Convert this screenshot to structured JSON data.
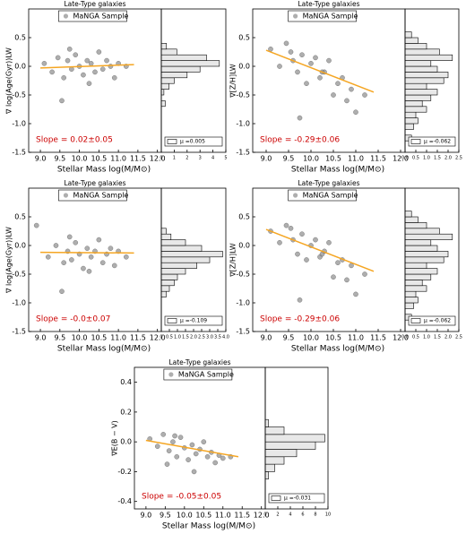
{
  "chart_data": [
    {
      "type": "scatter",
      "title": "Late-Type galaxies",
      "x_label": "Stellar Mass log(M/M⊙)",
      "y_label": "∇ log(Age(Gyr))LW",
      "annotation": "Slope = 0.02±0.05",
      "annotation_color": "#cc0000",
      "xlim": [
        8.7,
        12.1
      ],
      "xticks": [
        {
          "value": 9,
          "label": "9.0"
        },
        9.5,
        {
          "value": 10,
          "label": "10.0"
        },
        10.5,
        {
          "value": 11,
          "label": "11.0"
        },
        11.5,
        {
          "value": 12,
          "label": "12.0"
        }
      ],
      "ylim": [
        -1.5,
        1.0
      ],
      "yticks": [
        -1.5,
        {
          "value": -1,
          "label": "-1.0"
        },
        -0.5,
        {
          "value": 0,
          "label": "0.0"
        },
        0.5
      ],
      "series": [
        {
          "name": "MaNGA Sample",
          "color": "#8c8c8c",
          "x": [
            9.1,
            9.3,
            9.45,
            9.6,
            9.7,
            9.8,
            9.9,
            10.0,
            10.1,
            10.2,
            10.3,
            10.4,
            10.5,
            10.6,
            10.7,
            10.8,
            10.9,
            11.0,
            11.2,
            9.55,
            9.75,
            10.25
          ],
          "values": [
            0.05,
            -0.1,
            0.15,
            -0.2,
            0.1,
            -0.05,
            0.2,
            0.0,
            -0.15,
            0.1,
            0.05,
            -0.1,
            0.25,
            -0.05,
            0.1,
            0.0,
            -0.2,
            0.05,
            0.0,
            -0.6,
            0.3,
            -0.3
          ]
        }
      ],
      "fit": {
        "color": "#f5a623",
        "x": [
          9.0,
          11.4
        ],
        "values": [
          -0.03,
          0.03
        ]
      },
      "histogram": {
        "legend": "μ =0.005",
        "xlim": [
          0,
          5
        ],
        "xticks": [
          0,
          1,
          2,
          3,
          4,
          5
        ],
        "bins": [
          -0.7,
          -0.6,
          -0.5,
          -0.4,
          -0.3,
          -0.2,
          -0.1,
          0.0,
          0.1,
          0.2,
          0.3,
          0.4
        ],
        "counts": [
          0.3,
          0,
          0.2,
          0.6,
          1.0,
          2.0,
          3.0,
          4.5,
          3.5,
          1.2,
          0.4
        ]
      }
    },
    {
      "type": "scatter",
      "title": "Late-Type galaxies",
      "x_label": "Stellar Mass log(M/M⊙)",
      "y_label": "∇[Z/H]LW",
      "annotation": "Slope = -0.29±0.06",
      "annotation_color": "#cc0000",
      "xlim": [
        8.7,
        12.1
      ],
      "xticks": [
        {
          "value": 9,
          "label": "9.0"
        },
        9.5,
        {
          "value": 10,
          "label": "10.0"
        },
        10.5,
        {
          "value": 11,
          "label": "11.0"
        },
        11.5,
        {
          "value": 12,
          "label": "12.0"
        }
      ],
      "ylim": [
        -1.5,
        1.0
      ],
      "yticks": [
        -1.5,
        {
          "value": -1,
          "label": "-1.0"
        },
        -0.5,
        {
          "value": 0,
          "label": "0.0"
        },
        0.5
      ],
      "series": [
        {
          "name": "MaNGA Sample",
          "color": "#8c8c8c",
          "x": [
            9.1,
            9.3,
            9.45,
            9.6,
            9.7,
            9.8,
            9.9,
            10.0,
            10.1,
            10.2,
            10.3,
            10.4,
            10.5,
            10.6,
            10.7,
            10.8,
            10.9,
            11.0,
            11.2,
            9.55,
            9.75,
            10.25
          ],
          "values": [
            0.3,
            0.0,
            0.4,
            0.1,
            -0.1,
            0.2,
            -0.3,
            0.05,
            0.15,
            -0.2,
            -0.1,
            0.1,
            -0.5,
            -0.3,
            -0.2,
            -0.6,
            -0.4,
            -0.8,
            -0.5,
            0.25,
            -0.9,
            -0.1
          ]
        }
      ],
      "fit": {
        "color": "#f5a623",
        "x": [
          9.0,
          11.4
        ],
        "values": [
          0.28,
          -0.45
        ]
      },
      "histogram": {
        "legend": "μ =-0.062",
        "xlim": [
          0,
          2.5
        ],
        "xticks": [
          {
            "value": 0,
            "label": "0.0"
          },
          0.5,
          {
            "value": 1,
            "label": "1.0"
          },
          1.5,
          {
            "value": 2,
            "label": "2.0"
          },
          2.5
        ],
        "bins": [
          -1.3,
          -1.2,
          -1.1,
          -1.0,
          -0.9,
          -0.8,
          -0.7,
          -0.6,
          -0.5,
          -0.4,
          -0.3,
          -0.2,
          -0.1,
          0.0,
          0.1,
          0.2,
          0.3,
          0.4,
          0.5,
          0.6
        ],
        "counts": [
          0.3,
          0,
          0.4,
          0.6,
          0.5,
          1.0,
          0.8,
          1.2,
          1.5,
          1.0,
          1.8,
          2.0,
          1.5,
          1.2,
          2.2,
          1.6,
          1.0,
          0.6,
          0.3
        ]
      }
    },
    {
      "type": "scatter",
      "title": "Late-Type galaxies",
      "x_label": "Stellar Mass log(M/M⊙)",
      "y_label": "∇ log(Age(Gyr))LW",
      "annotation": "Slope = -0.0±0.07",
      "annotation_color": "#cc0000",
      "xlim": [
        8.7,
        12.1
      ],
      "xticks": [
        {
          "value": 9,
          "label": "9.0"
        },
        9.5,
        {
          "value": 10,
          "label": "10.0"
        },
        10.5,
        {
          "value": 11,
          "label": "11.0"
        },
        11.5,
        {
          "value": 12,
          "label": "12.0"
        }
      ],
      "ylim": [
        -1.5,
        1.0
      ],
      "yticks": [
        -1.5,
        {
          "value": -1,
          "label": "-1.0"
        },
        -0.5,
        {
          "value": 0,
          "label": "0.0"
        },
        0.5
      ],
      "series": [
        {
          "name": "MaNGA Sample",
          "color": "#8c8c8c",
          "x": [
            8.9,
            9.2,
            9.4,
            9.6,
            9.7,
            9.8,
            9.9,
            10.0,
            10.1,
            10.2,
            10.3,
            10.4,
            10.5,
            10.6,
            10.7,
            10.8,
            10.9,
            11.0,
            11.2,
            9.55,
            9.75,
            10.25
          ],
          "values": [
            0.35,
            -0.2,
            0.0,
            -0.3,
            -0.1,
            -0.25,
            0.05,
            -0.15,
            -0.4,
            -0.05,
            -0.2,
            -0.1,
            0.1,
            -0.3,
            -0.15,
            -0.05,
            -0.35,
            -0.1,
            -0.2,
            -0.8,
            0.15,
            -0.45
          ]
        }
      ],
      "fit": {
        "color": "#f5a623",
        "x": [
          9.0,
          11.4
        ],
        "values": [
          -0.12,
          -0.13
        ]
      },
      "histogram": {
        "legend": "μ =-0.109",
        "xlim": [
          0,
          4
        ],
        "xticks": [
          0,
          0.5,
          {
            "value": 1,
            "label": "1.0"
          },
          1.5,
          {
            "value": 2,
            "label": "2.0"
          },
          2.5,
          {
            "value": 3,
            "label": "3.0"
          },
          3.5,
          {
            "value": 4,
            "label": "4.0"
          }
        ],
        "bins": [
          -0.9,
          -0.8,
          -0.7,
          -0.6,
          -0.5,
          -0.4,
          -0.3,
          -0.2,
          -0.1,
          0.0,
          0.1,
          0.2,
          0.3
        ],
        "counts": [
          0.3,
          0.5,
          0.8,
          1.0,
          1.5,
          2.2,
          3.0,
          3.8,
          2.5,
          1.5,
          0.6,
          0.3
        ]
      }
    },
    {
      "type": "scatter",
      "title": "Late-Type galaxies",
      "x_label": "Stellar Mass log(M/M⊙)",
      "y_label": "∇[Z/H]LW",
      "annotation": "Slope = -0.29±0.06",
      "annotation_color": "#cc0000",
      "xlim": [
        8.7,
        12.1
      ],
      "xticks": [
        {
          "value": 9,
          "label": "9.0"
        },
        9.5,
        {
          "value": 10,
          "label": "10.0"
        },
        10.5,
        {
          "value": 11,
          "label": "11.0"
        },
        11.5,
        {
          "value": 12,
          "label": "12.0"
        }
      ],
      "ylim": [
        -1.5,
        1.0
      ],
      "yticks": [
        -1.5,
        {
          "value": -1,
          "label": "-1.0"
        },
        -0.5,
        {
          "value": 0,
          "label": "0.0"
        },
        0.5
      ],
      "series": [
        {
          "name": "MaNGA Sample",
          "color": "#8c8c8c",
          "x": [
            9.1,
            9.3,
            9.45,
            9.6,
            9.7,
            9.8,
            9.9,
            10.0,
            10.1,
            10.2,
            10.3,
            10.4,
            10.5,
            10.6,
            10.7,
            10.8,
            10.9,
            11.0,
            11.2,
            9.55,
            9.75,
            10.25
          ],
          "values": [
            0.25,
            0.05,
            0.35,
            0.1,
            -0.15,
            0.2,
            -0.25,
            0.0,
            0.1,
            -0.2,
            -0.1,
            0.05,
            -0.55,
            -0.3,
            -0.25,
            -0.6,
            -0.35,
            -0.85,
            -0.5,
            0.3,
            -0.95,
            -0.15
          ]
        }
      ],
      "fit": {
        "color": "#f5a623",
        "x": [
          9.0,
          11.4
        ],
        "values": [
          0.28,
          -0.45
        ]
      },
      "histogram": {
        "legend": "μ =-0.062",
        "xlim": [
          0,
          2.5
        ],
        "xticks": [
          {
            "value": 0,
            "label": "0.0"
          },
          0.5,
          {
            "value": 1,
            "label": "1.0"
          },
          1.5,
          {
            "value": 2,
            "label": "2.0"
          },
          2.5
        ],
        "bins": [
          -1.3,
          -1.2,
          -1.1,
          -1.0,
          -0.9,
          -0.8,
          -0.7,
          -0.6,
          -0.5,
          -0.4,
          -0.3,
          -0.2,
          -0.1,
          0.0,
          0.1,
          0.2,
          0.3,
          0.4,
          0.5,
          0.6
        ],
        "counts": [
          0.3,
          0,
          0.4,
          0.6,
          0.5,
          1.0,
          0.8,
          1.2,
          1.5,
          1.0,
          1.8,
          2.0,
          1.5,
          1.2,
          2.2,
          1.6,
          1.0,
          0.6,
          0.3
        ]
      }
    },
    {
      "type": "scatter",
      "title": "Late-Type galaxies",
      "x_label": "Stellar Mass log(M/M⊙)",
      "y_label": "∇E(B − V)",
      "annotation": "Slope = -0.05±0.05",
      "annotation_color": "#cc0000",
      "xlim": [
        8.7,
        12.1
      ],
      "xticks": [
        {
          "value": 9,
          "label": "9.0"
        },
        9.5,
        {
          "value": 10,
          "label": "10.0"
        },
        10.5,
        {
          "value": 11,
          "label": "11.0"
        },
        11.5,
        {
          "value": 12,
          "label": "12.0"
        }
      ],
      "ylim": [
        -0.45,
        0.5
      ],
      "yticks": [
        -0.4,
        -0.2,
        {
          "value": 0,
          "label": "0.0"
        },
        0.2,
        0.4
      ],
      "series": [
        {
          "name": "MaNGA Sample",
          "color": "#8c8c8c",
          "x": [
            9.1,
            9.3,
            9.45,
            9.6,
            9.7,
            9.8,
            9.9,
            10.0,
            10.1,
            10.2,
            10.3,
            10.4,
            10.5,
            10.6,
            10.7,
            10.8,
            10.9,
            11.0,
            11.2,
            9.55,
            9.75,
            10.25
          ],
          "values": [
            0.02,
            -0.03,
            0.05,
            -0.06,
            0.0,
            -0.1,
            0.03,
            -0.04,
            -0.12,
            -0.02,
            -0.08,
            -0.05,
            0.0,
            -0.1,
            -0.07,
            -0.14,
            -0.09,
            -0.11,
            -0.1,
            -0.15,
            0.04,
            -0.2
          ]
        }
      ],
      "fit": {
        "color": "#f5a623",
        "x": [
          9.0,
          11.4
        ],
        "values": [
          0.01,
          -0.1
        ]
      },
      "histogram": {
        "legend": "μ =-0.031",
        "xlim": [
          0,
          10
        ],
        "xticks": [
          0,
          2,
          4,
          6,
          8,
          10
        ],
        "bins": [
          -0.25,
          -0.2,
          -0.15,
          -0.1,
          -0.05,
          0.0,
          0.05,
          0.1,
          0.15
        ],
        "counts": [
          0.5,
          1.5,
          3,
          5,
          8,
          9.5,
          3,
          0.5
        ]
      }
    }
  ]
}
